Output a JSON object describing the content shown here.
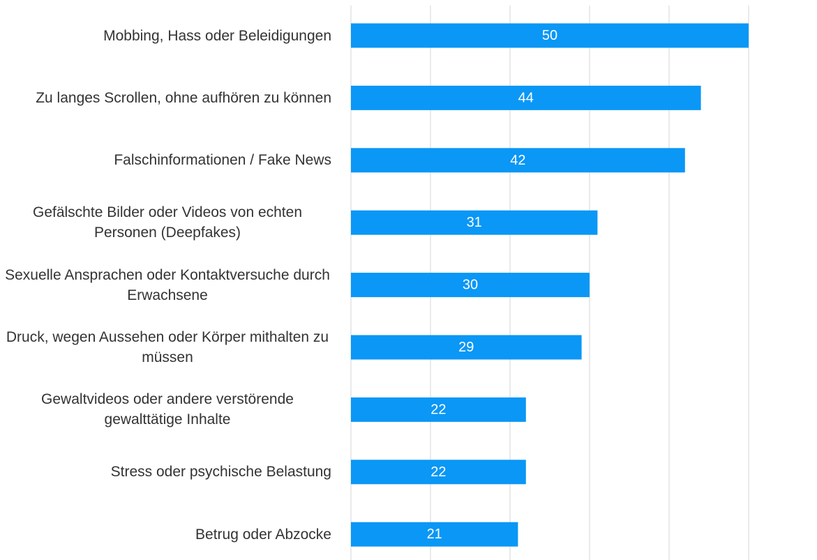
{
  "chart_data": {
    "type": "hbar",
    "categories": [
      "Mobbing, Hass oder Beleidigungen",
      "Zu langes Scrollen, ohne aufhören zu können",
      "Falschinformationen / Fake News",
      "Gefälschte Bilder oder Videos von echten Personen (Deepfakes)",
      "Sexuelle Ansprachen oder Kontaktversuche durch Erwachsene",
      "Druck, wegen Aussehen oder Körper mithalten zu müssen",
      "Gewaltvideos oder andere verstörende gewalttätige Inhalte",
      "Stress oder psychische Belastung",
      "Betrug oder Abzocke"
    ],
    "values": [
      50,
      44,
      42,
      31,
      30,
      29,
      22,
      22,
      21
    ],
    "color": "#0a97f5",
    "xlim": [
      0,
      50
    ],
    "xticks": [
      0,
      10,
      20,
      30,
      40,
      50
    ],
    "grid": true
  }
}
